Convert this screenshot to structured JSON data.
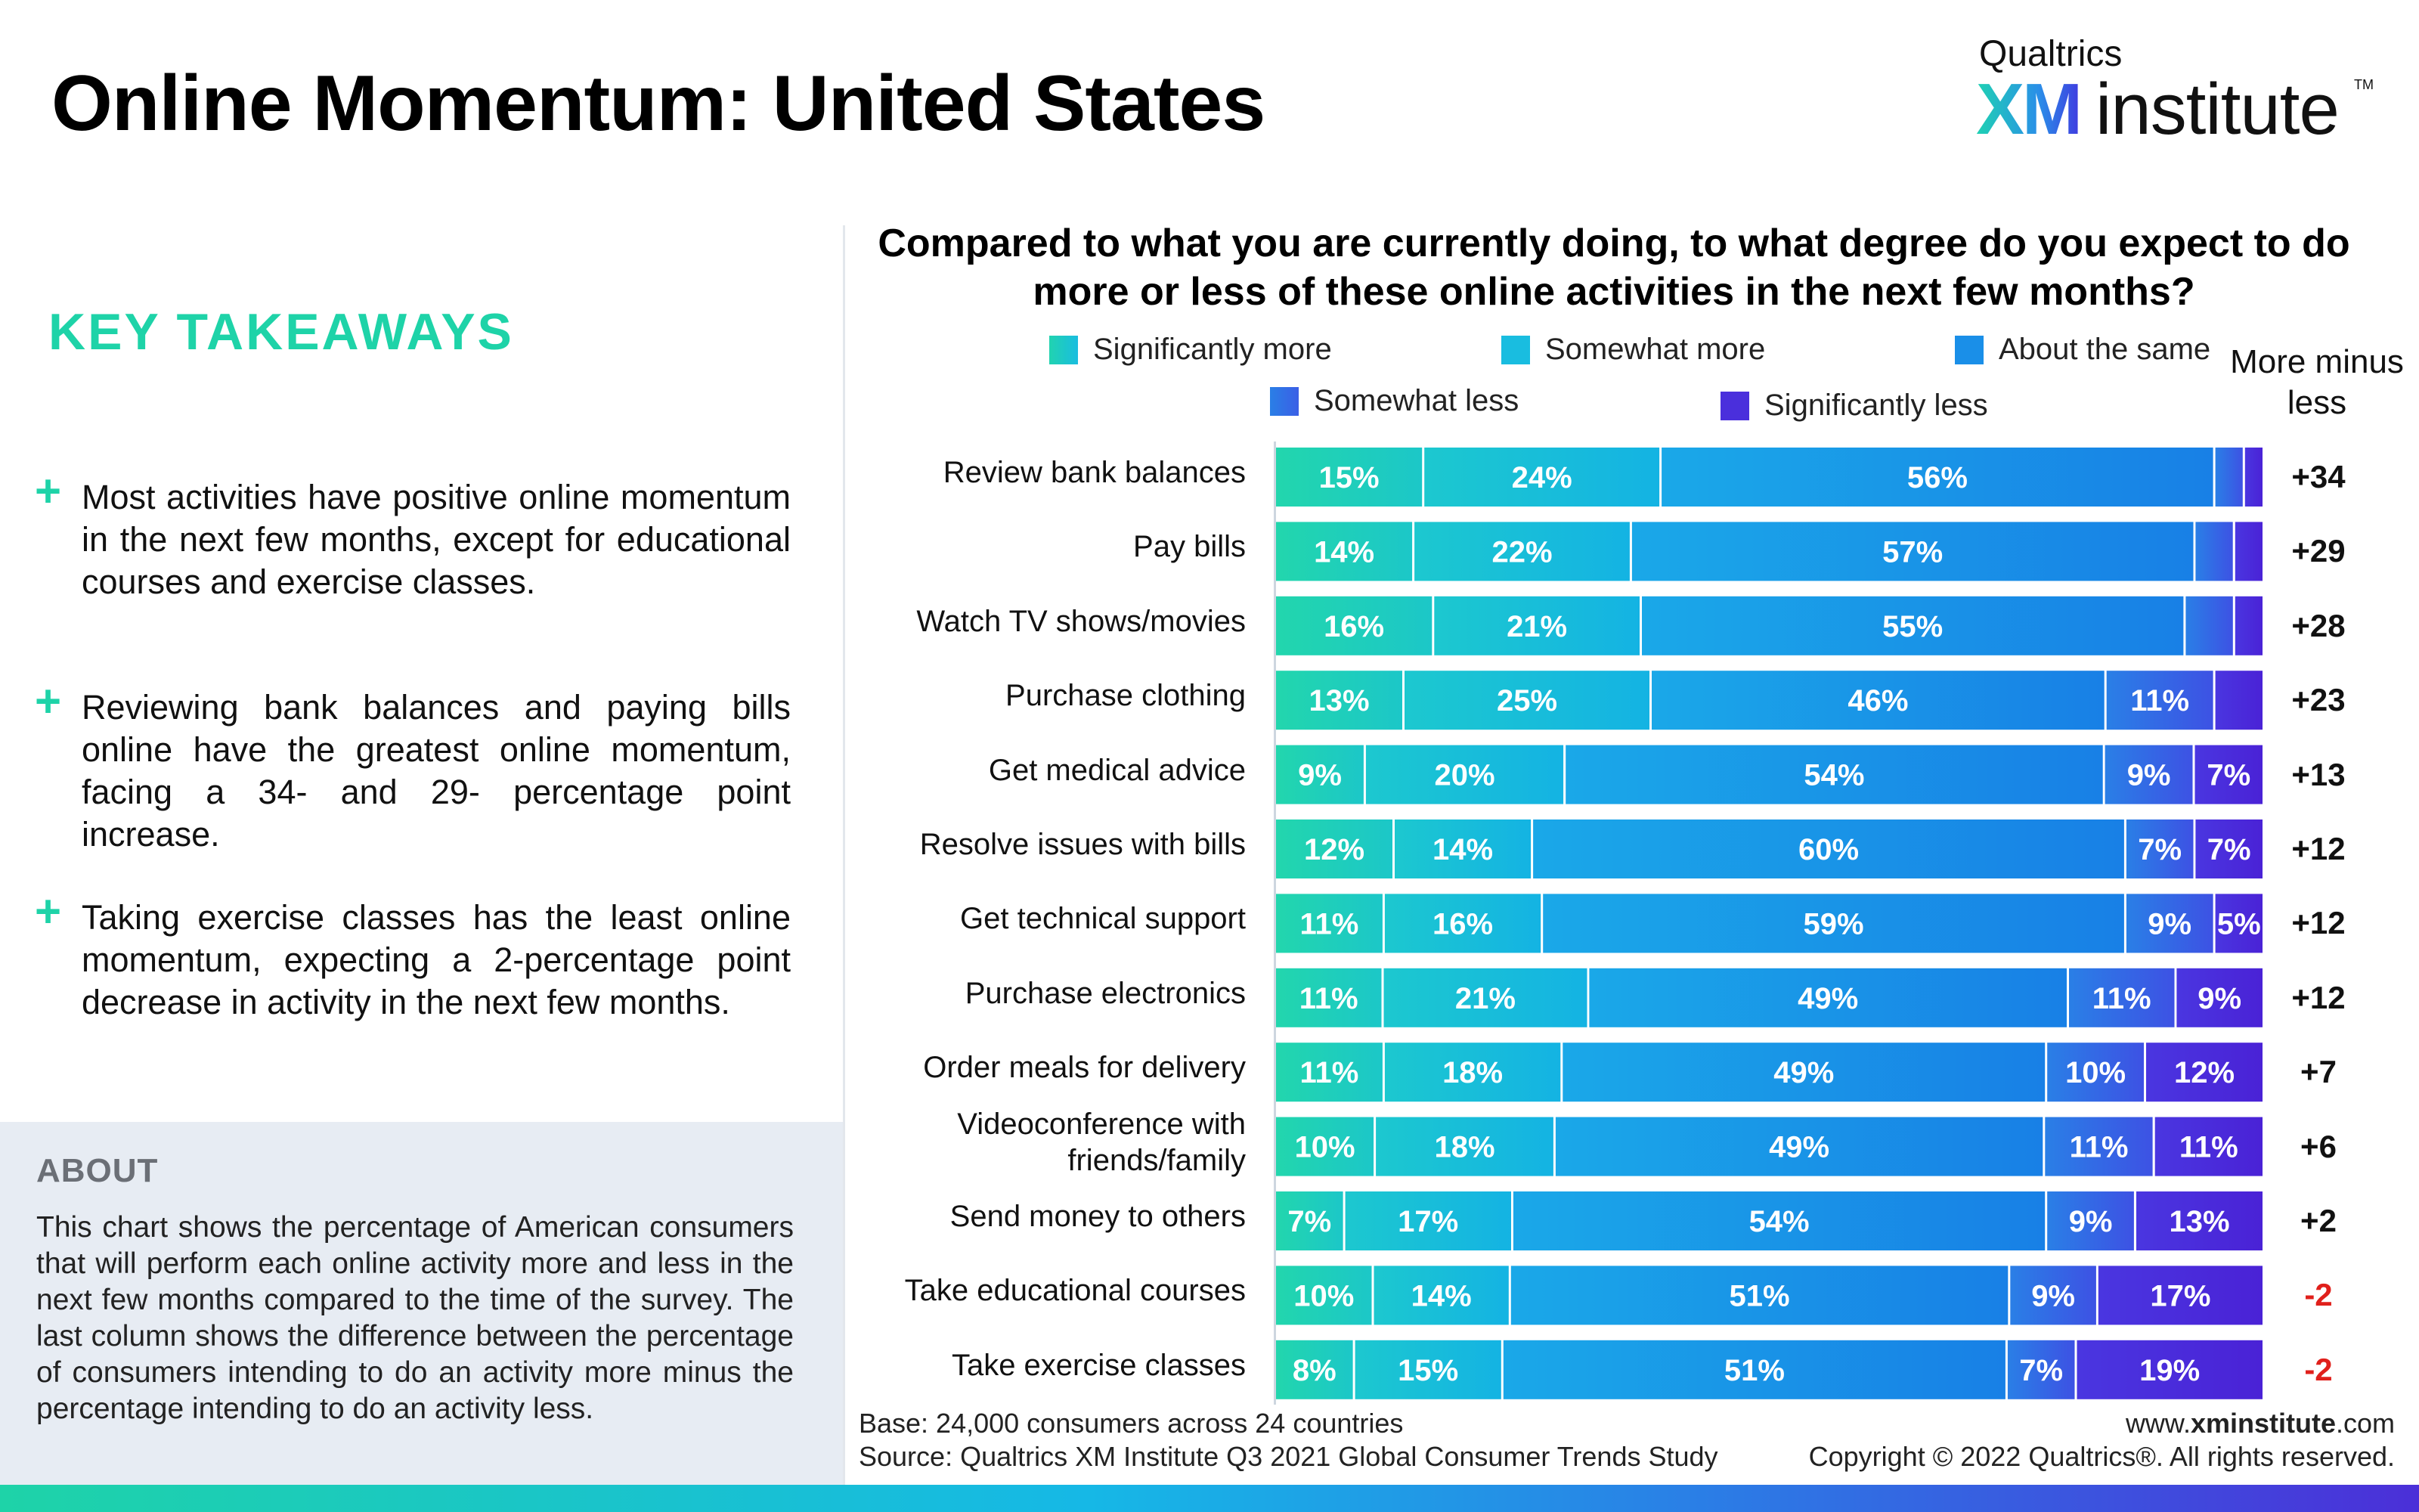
{
  "title": "Online Momentum: United States",
  "logo": {
    "top": "Qualtrics",
    "xm": "XM",
    "institute": "institute",
    "tm": "TM"
  },
  "takeaways": {
    "heading": "KEY TAKEAWAYS",
    "items": [
      "Most activities have positive online momentum in the next few months, except for educational courses and exercise classes.",
      "Reviewing bank balances and paying bills online have the greatest online momentum, facing a 34- and 29- percentage point increase.",
      "Taking exercise classes has the least online momentum, expecting a 2-percentage point decrease in activity in the next few months."
    ]
  },
  "about": {
    "heading": "ABOUT",
    "text": "This chart shows the percentage of American consumers that will perform each online activity more and less in the next few months compared to the time of the survey. The last column shows the difference between the percentage of consumers intending to do an activity more minus the percentage intending to do an activity less."
  },
  "question": "Compared to what you are currently doing, to what degree do you expect to do more or less of these online activities in the next few months?",
  "more_minus_less_header": "More minus less",
  "footer": {
    "base": "Base: 24,000 consumers across 24 countries",
    "source": "Source: Qualtrics XM Institute Q3 2021 Global Consumer Trends Study",
    "url_pre": "www.",
    "url_bold": "xminstitute",
    "url_post": ".com",
    "copyright": "Copyright © 2022 Qualtrics®. All rights reserved."
  },
  "colors": {
    "significantly_more": "#21d3b0",
    "somewhat_more": "#19bde0",
    "about_same": "#1a8fe8",
    "somewhat_less": "#3b5fe6",
    "significantly_less": "#4a2fdc",
    "positive_diff": "#111111",
    "negative_diff": "#e0201b",
    "accent_green": "#1ed3a8"
  },
  "chart_data": {
    "type": "bar",
    "orientation": "horizontal",
    "stacked": true,
    "series_names": [
      "Significantly more",
      "Somewhat more",
      "About the same",
      "Somewhat less",
      "Significantly less"
    ],
    "categories": [
      "Review bank balances",
      "Pay bills",
      "Watch TV shows/movies",
      "Purchase clothing",
      "Get medical advice",
      "Resolve issues with bills",
      "Get technical support",
      "Purchase electronics",
      "Order meals for delivery",
      "Videoconference with friends/family",
      "Send money to others",
      "Take educational courses",
      "Take exercise classes"
    ],
    "category_lines": [
      [
        "Review bank balances"
      ],
      [
        "Pay bills"
      ],
      [
        "Watch TV shows/movies"
      ],
      [
        "Purchase clothing"
      ],
      [
        "Get medical advice"
      ],
      [
        "Resolve issues with bills"
      ],
      [
        "Get technical support"
      ],
      [
        "Purchase electronics"
      ],
      [
        "Order meals for delivery"
      ],
      [
        "Videoconference with",
        "friends/family"
      ],
      [
        "Send money to others"
      ],
      [
        "Take educational courses"
      ],
      [
        "Take exercise classes"
      ]
    ],
    "series": [
      {
        "name": "Significantly more",
        "values": [
          15,
          14,
          16,
          13,
          9,
          12,
          11,
          11,
          11,
          10,
          7,
          10,
          8
        ]
      },
      {
        "name": "Somewhat more",
        "values": [
          24,
          22,
          21,
          25,
          20,
          14,
          16,
          21,
          18,
          18,
          17,
          14,
          15
        ]
      },
      {
        "name": "About the same",
        "values": [
          56,
          57,
          55,
          46,
          54,
          60,
          59,
          49,
          49,
          49,
          54,
          51,
          51
        ]
      },
      {
        "name": "Somewhat less",
        "values": [
          3,
          4,
          5,
          11,
          9,
          7,
          9,
          11,
          10,
          11,
          9,
          9,
          7
        ]
      },
      {
        "name": "Significantly less",
        "values": [
          2,
          3,
          3,
          5,
          7,
          7,
          5,
          9,
          12,
          11,
          13,
          17,
          19
        ]
      }
    ],
    "data_labels": [
      [
        "15%",
        "24%",
        "56%",
        "",
        ""
      ],
      [
        "14%",
        "22%",
        "57%",
        "",
        ""
      ],
      [
        "16%",
        "21%",
        "55%",
        "",
        ""
      ],
      [
        "13%",
        "25%",
        "46%",
        "11%",
        ""
      ],
      [
        "9%",
        "20%",
        "54%",
        "9%",
        "7%"
      ],
      [
        "12%",
        "14%",
        "60%",
        "7%",
        "7%"
      ],
      [
        "11%",
        "16%",
        "59%",
        "9%",
        "5%"
      ],
      [
        "11%",
        "21%",
        "49%",
        "11%",
        "9%"
      ],
      [
        "11%",
        "18%",
        "49%",
        "10%",
        "12%"
      ],
      [
        "10%",
        "18%",
        "49%",
        "11%",
        "11%"
      ],
      [
        "7%",
        "17%",
        "54%",
        "9%",
        "13%"
      ],
      [
        "10%",
        "14%",
        "51%",
        "9%",
        "17%"
      ],
      [
        "8%",
        "15%",
        "51%",
        "7%",
        "19%"
      ]
    ],
    "more_minus_less": [
      "+34",
      "+29",
      "+28",
      "+23",
      "+13",
      "+12",
      "+12",
      "+12",
      "+7",
      "+6",
      "+2",
      "-2",
      "-2"
    ],
    "xlim": [
      0,
      100
    ],
    "legend_position": "top"
  }
}
